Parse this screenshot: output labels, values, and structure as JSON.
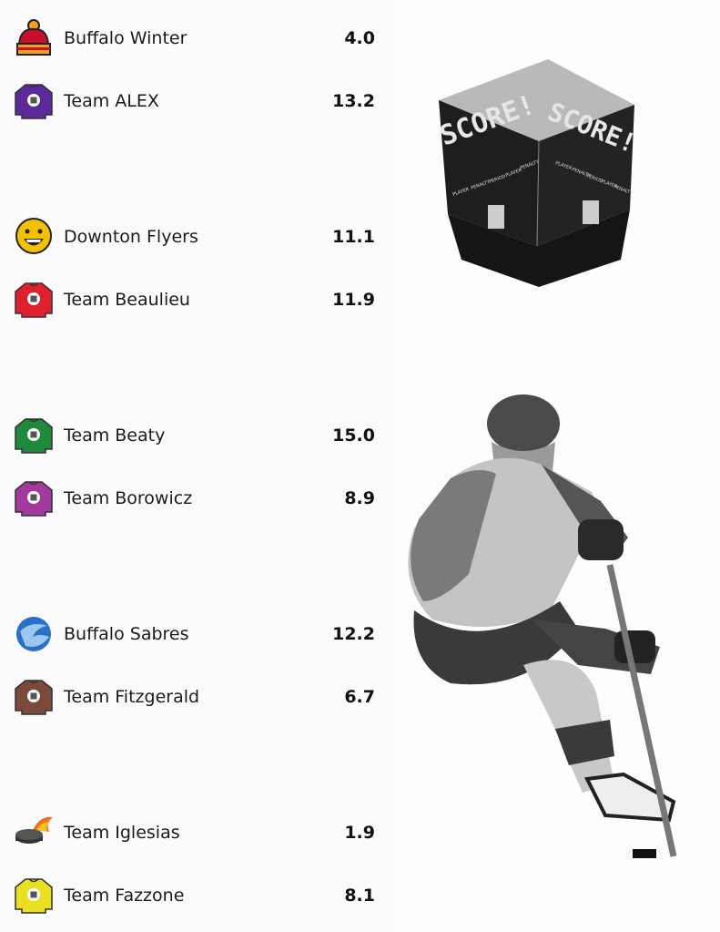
{
  "matchups": [
    {
      "teams": [
        {
          "name": "Buffalo Winter",
          "score": "4.0",
          "icon": "winter-hat-icon",
          "color": "#c8102e"
        },
        {
          "name": "Team ALEX",
          "score": "13.2",
          "icon": "jersey-icon",
          "color": "#5b2a9a"
        }
      ]
    },
    {
      "teams": [
        {
          "name": "Downton Flyers",
          "score": "11.1",
          "icon": "smiley-face-icon",
          "color": "#f2c200"
        },
        {
          "name": "Team Beaulieu",
          "score": "11.9",
          "icon": "jersey-icon",
          "color": "#e0202e"
        }
      ]
    },
    {
      "teams": [
        {
          "name": "Team Beaty",
          "score": "15.0",
          "icon": "jersey-icon",
          "color": "#1f8a3b"
        },
        {
          "name": "Team Borowicz",
          "score": "8.9",
          "icon": "jersey-icon",
          "color": "#a23a9e"
        }
      ]
    },
    {
      "teams": [
        {
          "name": "Buffalo Sabres",
          "score": "12.2",
          "icon": "sabres-logo-icon",
          "color": "#2a6fc9"
        },
        {
          "name": "Team Fitzgerald",
          "score": "6.7",
          "icon": "jersey-icon",
          "color": "#7a4a3a"
        }
      ]
    },
    {
      "teams": [
        {
          "name": "Team Iglesias",
          "score": "1.9",
          "icon": "flaming-puck-icon",
          "color": "#222222"
        },
        {
          "name": "Team Fazzone",
          "score": "8.1",
          "icon": "jersey-icon",
          "color": "#e8e020"
        }
      ]
    }
  ],
  "scoreboard": {
    "text": "SCORE!",
    "labels": [
      "PLAYER",
      "PENALTY",
      "PERIOD",
      "PLAYER",
      "PENALTY"
    ]
  }
}
